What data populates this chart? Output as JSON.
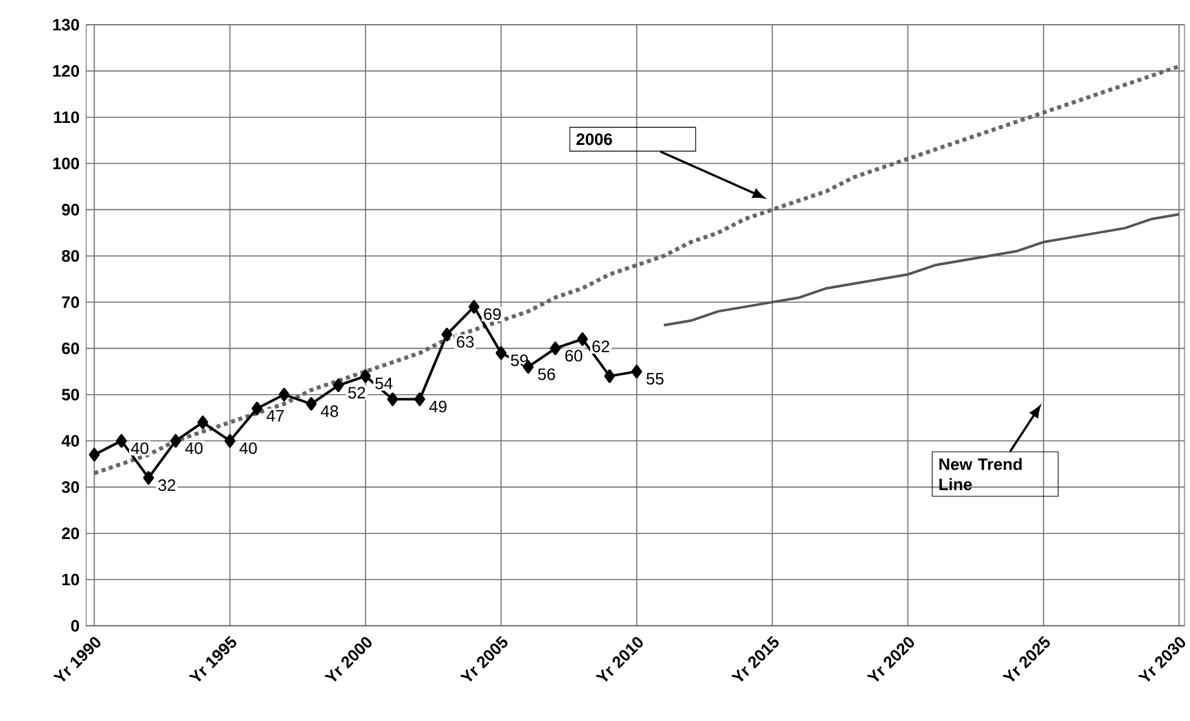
{
  "chart_data": {
    "type": "line",
    "ylim": [
      0,
      130
    ],
    "categories": [
      "Yr 1990",
      null,
      null,
      null,
      null,
      "Yr 1995",
      null,
      null,
      null,
      null,
      "Yr 2000",
      null,
      null,
      null,
      null,
      "Yr 2005",
      null,
      null,
      null,
      null,
      "Yr 2010",
      null,
      null,
      null,
      null,
      "Yr 2015",
      null,
      null,
      null,
      null,
      "Yr 2020",
      null,
      null,
      null,
      null,
      "Yr 2025",
      null,
      null,
      null,
      null,
      "Yr 2030"
    ],
    "yticks": [
      0,
      10,
      20,
      30,
      40,
      50,
      60,
      70,
      80,
      90,
      100,
      110,
      120,
      130
    ],
    "grid": true,
    "series": [
      {
        "color": "#666666",
        "marker": "none",
        "line_style": "dotted",
        "values": [
          33,
          35,
          37,
          40,
          42,
          44,
          46,
          48,
          51,
          53,
          55,
          57,
          59,
          62,
          64,
          66,
          68,
          71,
          73,
          76,
          78,
          80,
          83,
          85,
          88,
          90,
          92,
          94,
          97,
          99,
          101,
          103,
          105,
          107,
          109,
          111,
          113,
          115,
          117,
          119,
          121
        ]
      },
      {
        "color": "#555555",
        "marker": "none",
        "line_style": "solid",
        "values": [
          null,
          null,
          null,
          null,
          null,
          null,
          null,
          null,
          null,
          null,
          null,
          null,
          null,
          null,
          null,
          null,
          null,
          null,
          null,
          null,
          null,
          65,
          66,
          68,
          69,
          70,
          71,
          73,
          74,
          75,
          76,
          78,
          79,
          80,
          81,
          83,
          84,
          85,
          86,
          88,
          89
        ]
      },
      {
        "color": "#000000",
        "marker": "diamond",
        "line_style": "solid",
        "values": [
          37,
          40,
          32,
          40,
          44,
          40,
          47,
          50,
          48,
          52,
          54,
          49,
          49,
          63,
          69,
          59,
          56,
          60,
          62,
          54,
          55,
          null,
          null,
          null,
          null,
          null,
          null,
          null,
          null,
          null,
          null,
          null,
          null,
          null,
          null,
          null,
          null,
          null,
          null,
          null,
          null
        ],
        "value_labels": [
          null,
          "40",
          "32",
          "40",
          null,
          "40",
          "47",
          null,
          "48",
          "52",
          "54",
          null,
          "49",
          "63",
          "69",
          "59",
          "56",
          "60",
          "62",
          null,
          "55",
          null,
          null,
          null,
          null,
          null,
          null,
          null,
          null,
          null,
          null,
          null,
          null,
          null,
          null,
          null,
          null,
          null,
          null,
          null,
          null
        ]
      }
    ],
    "annotations": [
      "2006",
      "New Trend Line"
    ]
  }
}
